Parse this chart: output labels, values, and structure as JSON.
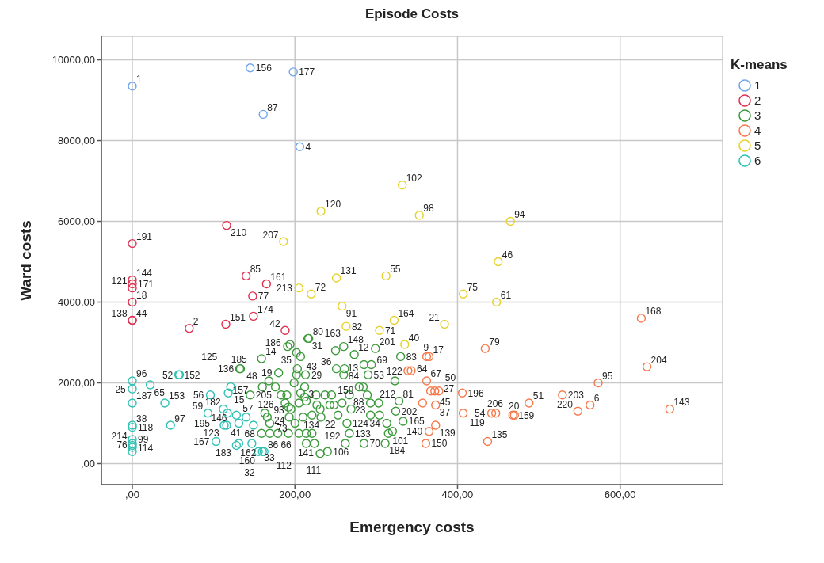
{
  "chart_data": {
    "type": "scatter",
    "title": "Episode Costs",
    "xlabel": "Emergency costs",
    "ylabel": "Ward costs",
    "legend_title": "K-means",
    "legend": "top right",
    "grid": true,
    "marker": "circle",
    "xlim": [
      -38,
      726
    ],
    "xticks": [
      {
        "value": 0,
        "label": ",00"
      },
      {
        "value": 200,
        "label": "200,00"
      },
      {
        "value": 400,
        "label": "400,00"
      },
      {
        "value": 600,
        "label": "600,00"
      }
    ],
    "ylim": [
      -520,
      10580
    ],
    "yticks": [
      {
        "value": 0,
        "label": ",00"
      },
      {
        "value": 2000,
        "label": "2000,00"
      },
      {
        "value": 4000,
        "label": "4000,00"
      },
      {
        "value": 6000,
        "label": "6000,00"
      },
      {
        "value": 8000,
        "label": "8000,00"
      },
      {
        "value": 10000,
        "label": "10000,00"
      }
    ],
    "series": [
      {
        "name": "1",
        "color": "#6fa5ec",
        "x": [
          0,
          145,
          198,
          161,
          206
        ],
        "values": [
          9350,
          9800,
          9700,
          8650,
          7850
        ]
      },
      {
        "name": "2",
        "color": "#e0304f",
        "x": [
          0,
          116,
          0,
          0,
          0,
          0,
          0,
          0,
          70,
          115,
          140,
          165,
          148,
          149,
          188
        ],
        "values": [
          5450,
          5900,
          4550,
          4450,
          4350,
          4000,
          3550,
          3550,
          3350,
          3450,
          4650,
          4450,
          4150,
          3650,
          3300
        ]
      },
      {
        "name": "3",
        "color": "#3c9a3c",
        "x": [
          194,
          191,
          217,
          216,
          260,
          273,
          202,
          207,
          180,
          203,
          202,
          213,
          159,
          133,
          132,
          251,
          261,
          260,
          285,
          294,
          290,
          160,
          168,
          176,
          199,
          212,
          207,
          226,
          237,
          245,
          267,
          279,
          284,
          289,
          145,
          183,
          190,
          188,
          192,
          195,
          205,
          214,
          212,
          227,
          231,
          248,
          243,
          258,
          269,
          293,
          303,
          163,
          166,
          169,
          193,
          200,
          210,
          221,
          232,
          253,
          264,
          293,
          304,
          313,
          179,
          192,
          205,
          214,
          221,
          169,
          159,
          214,
          224,
          267,
          285,
          231,
          240,
          262,
          315,
          323,
          328,
          324,
          333,
          320,
          311,
          299,
          330,
          250
        ],
        "values": [
          2950,
          2900,
          3100,
          3100,
          2900,
          2700,
          2750,
          2650,
          2250,
          2350,
          2200,
          2200,
          2600,
          2350,
          2350,
          2350,
          2350,
          2200,
          2450,
          2450,
          2200,
          1900,
          2050,
          1900,
          2000,
          1900,
          1750,
          1700,
          1700,
          1700,
          1700,
          1900,
          1900,
          1700,
          1700,
          1700,
          1700,
          1500,
          1400,
          1350,
          1500,
          1550,
          1650,
          1450,
          1350,
          1450,
          1450,
          1500,
          1350,
          1500,
          1500,
          1250,
          1150,
          1000,
          1150,
          1000,
          1150,
          1200,
          1150,
          1200,
          1000,
          1200,
          1200,
          1000,
          750,
          750,
          750,
          750,
          750,
          750,
          750,
          500,
          500,
          750,
          500,
          250,
          300,
          500,
          750,
          2050,
          1550,
          1300,
          1050,
          800,
          500,
          2850,
          2650,
          2800
        ]
      },
      {
        "name": "4",
        "color": "#f5794a",
        "x": [
          626,
          633,
          573,
          529,
          563,
          548,
          661,
          488,
          468,
          470,
          447,
          442,
          437,
          434,
          406,
          407,
          365,
          362,
          339,
          343,
          362,
          367,
          372,
          377,
          373,
          357,
          373,
          365,
          361
        ],
        "values": [
          3600,
          2400,
          2000,
          1700,
          1450,
          1300,
          1350,
          1500,
          1200,
          1200,
          1250,
          1250,
          550,
          2850,
          1750,
          1250,
          2650,
          2650,
          2300,
          2300,
          2050,
          1800,
          1800,
          1800,
          1450,
          1500,
          950,
          800,
          500
        ]
      },
      {
        "name": "5",
        "color": "#e6d22a",
        "x": [
          186,
          232,
          332,
          353,
          465,
          450,
          312,
          407,
          448,
          251,
          220,
          205,
          258,
          263,
          304,
          322,
          384,
          335
        ],
        "values": [
          5500,
          6250,
          6900,
          6150,
          6000,
          5000,
          4650,
          4200,
          4000,
          4600,
          4200,
          4350,
          3900,
          3400,
          3300,
          3550,
          3450,
          2950
        ]
      },
      {
        "name": "6",
        "color": "#2fc2b4",
        "x": [
          0,
          0,
          0,
          0,
          0,
          0,
          0,
          0,
          0,
          0,
          57,
          58,
          22,
          40,
          47,
          96,
          93,
          121,
          112,
          117,
          113,
          116,
          103,
          118,
          128,
          131,
          140,
          149,
          131,
          128,
          147,
          155,
          160,
          162
        ],
        "values": [
          2050,
          1850,
          1500,
          950,
          900,
          600,
          500,
          400,
          300,
          450,
          2200,
          2200,
          1950,
          1500,
          950,
          1700,
          1250,
          1900,
          1350,
          1250,
          950,
          950,
          550,
          1750,
          1200,
          1000,
          1150,
          950,
          500,
          450,
          500,
          300,
          300,
          300
        ]
      }
    ],
    "annotations": [
      {
        "text": "1",
        "x": 0,
        "y": 9350
      },
      {
        "text": "156",
        "x": 145,
        "y": 9800
      },
      {
        "text": "177",
        "x": 198,
        "y": 9700
      },
      {
        "text": "87",
        "x": 161,
        "y": 8650
      },
      {
        "text": "4",
        "x": 206,
        "y": 7850
      },
      {
        "text": "191",
        "x": 0,
        "y": 5450
      },
      {
        "text": "210",
        "x": 116,
        "y": 5900
      },
      {
        "text": "144",
        "x": 0,
        "y": 4550
      },
      {
        "text": "171",
        "x": 0,
        "y": 4450
      },
      {
        "text": "121",
        "x": 0,
        "y": 4350
      },
      {
        "text": "18",
        "x": 0,
        "y": 4000
      },
      {
        "text": "44",
        "x": 0,
        "y": 3550
      },
      {
        "text": "138",
        "x": 0,
        "y": 3550
      },
      {
        "text": "2",
        "x": 70,
        "y": 3350
      },
      {
        "text": "151",
        "x": 115,
        "y": 3450
      },
      {
        "text": "85",
        "x": 140,
        "y": 4650
      },
      {
        "text": "161",
        "x": 165,
        "y": 4450
      },
      {
        "text": "77",
        "x": 148,
        "y": 4150
      },
      {
        "text": "174",
        "x": 149,
        "y": 3650
      },
      {
        "text": "42",
        "x": 188,
        "y": 3300
      },
      {
        "text": "186",
        "x": 194,
        "y": 2950
      },
      {
        "text": "80",
        "x": 217,
        "y": 3100
      },
      {
        "text": "31",
        "x": 216,
        "y": 3100
      },
      {
        "text": "148",
        "x": 260,
        "y": 2900
      },
      {
        "text": "12",
        "x": 273,
        "y": 2700
      },
      {
        "text": "35",
        "x": 202,
        "y": 2750
      },
      {
        "text": "19",
        "x": 180,
        "y": 2250
      },
      {
        "text": "43",
        "x": 203,
        "y": 2350
      },
      {
        "text": "14",
        "x": 159,
        "y": 2600
      },
      {
        "text": "136",
        "x": 133,
        "y": 2350
      },
      {
        "text": "185",
        "x": 132,
        "y": 2350
      },
      {
        "text": "36",
        "x": 251,
        "y": 2350
      },
      {
        "text": "84",
        "x": 261,
        "y": 2350
      },
      {
        "text": "13",
        "x": 260,
        "y": 2200
      },
      {
        "text": "69",
        "x": 285,
        "y": 2450
      },
      {
        "text": "53",
        "x": 290,
        "y": 2200
      },
      {
        "text": "48",
        "x": 168,
        "y": 2050
      },
      {
        "text": "29",
        "x": 199,
        "y": 2000
      },
      {
        "text": "3",
        "x": 212,
        "y": 1900
      },
      {
        "text": "158",
        "x": 237,
        "y": 1700
      },
      {
        "text": "88",
        "x": 267,
        "y": 1700
      },
      {
        "text": "205",
        "x": 145,
        "y": 1700
      },
      {
        "text": "126",
        "x": 183,
        "y": 1700
      },
      {
        "text": "24",
        "x": 188,
        "y": 1500
      },
      {
        "text": "23",
        "x": 293,
        "y": 1500
      },
      {
        "text": "57",
        "x": 163,
        "y": 1250
      },
      {
        "text": "93",
        "x": 193,
        "y": 1150
      },
      {
        "text": "66",
        "x": 200,
        "y": 1000
      },
      {
        "text": "134",
        "x": 221,
        "y": 1200
      },
      {
        "text": "22",
        "x": 232,
        "y": 1150
      },
      {
        "text": "124",
        "x": 264,
        "y": 1000
      },
      {
        "text": "212",
        "x": 293,
        "y": 1200
      },
      {
        "text": "34",
        "x": 313,
        "y": 1000
      },
      {
        "text": "86",
        "x": 192,
        "y": 750
      },
      {
        "text": "73",
        "x": 205,
        "y": 750
      },
      {
        "text": "68",
        "x": 159,
        "y": 750
      },
      {
        "text": "141",
        "x": 214,
        "y": 500
      },
      {
        "text": "133",
        "x": 267,
        "y": 750
      },
      {
        "text": "70",
        "x": 285,
        "y": 500
      },
      {
        "text": "111",
        "x": 231,
        "y": 250
      },
      {
        "text": "106",
        "x": 240,
        "y": 300
      },
      {
        "text": "192",
        "x": 262,
        "y": 500
      },
      {
        "text": "101",
        "x": 315,
        "y": 750
      },
      {
        "text": "122",
        "x": 323,
        "y": 2050
      },
      {
        "text": "81",
        "x": 328,
        "y": 1550
      },
      {
        "text": "202",
        "x": 324,
        "y": 1300
      },
      {
        "text": "165",
        "x": 333,
        "y": 1050
      },
      {
        "text": "184",
        "x": 311,
        "y": 500
      },
      {
        "text": "201",
        "x": 299,
        "y": 2850
      },
      {
        "text": "83",
        "x": 330,
        "y": 2650
      },
      {
        "text": "163",
        "x": 250,
        "y": 2800
      },
      {
        "text": "168",
        "x": 626,
        "y": 3600
      },
      {
        "text": "204",
        "x": 633,
        "y": 2400
      },
      {
        "text": "95",
        "x": 573,
        "y": 2000
      },
      {
        "text": "203",
        "x": 529,
        "y": 1700
      },
      {
        "text": "6",
        "x": 563,
        "y": 1450
      },
      {
        "text": "220",
        "x": 548,
        "y": 1300
      },
      {
        "text": "143",
        "x": 661,
        "y": 1350
      },
      {
        "text": "51",
        "x": 488,
        "y": 1500
      },
      {
        "text": "159",
        "x": 468,
        "y": 1200
      },
      {
        "text": "20",
        "x": 470,
        "y": 1200
      },
      {
        "text": "206",
        "x": 447,
        "y": 1250
      },
      {
        "text": "54",
        "x": 442,
        "y": 1250
      },
      {
        "text": "135",
        "x": 437,
        "y": 550
      },
      {
        "text": "79",
        "x": 434,
        "y": 2850
      },
      {
        "text": "196",
        "x": 406,
        "y": 1750
      },
      {
        "text": "119",
        "x": 407,
        "y": 1250
      },
      {
        "text": "17",
        "x": 365,
        "y": 2650
      },
      {
        "text": "9",
        "x": 362,
        "y": 2650
      },
      {
        "text": "64",
        "x": 339,
        "y": 2300
      },
      {
        "text": "67",
        "x": 362,
        "y": 2050
      },
      {
        "text": "45",
        "x": 367,
        "y": 1800
      },
      {
        "text": "27",
        "x": 372,
        "y": 1800
      },
      {
        "text": "50",
        "x": 377,
        "y": 1800
      },
      {
        "text": "37",
        "x": 373,
        "y": 1450
      },
      {
        "text": "139",
        "x": 373,
        "y": 950
      },
      {
        "text": "140",
        "x": 365,
        "y": 800
      },
      {
        "text": "150",
        "x": 361,
        "y": 500
      },
      {
        "text": "207",
        "x": 186,
        "y": 5500
      },
      {
        "text": "120",
        "x": 232,
        "y": 6250
      },
      {
        "text": "102",
        "x": 332,
        "y": 6900
      },
      {
        "text": "98",
        "x": 353,
        "y": 6150
      },
      {
        "text": "94",
        "x": 465,
        "y": 6000
      },
      {
        "text": "46",
        "x": 450,
        "y": 5000
      },
      {
        "text": "55",
        "x": 312,
        "y": 4650
      },
      {
        "text": "75",
        "x": 407,
        "y": 4200
      },
      {
        "text": "61",
        "x": 448,
        "y": 4000
      },
      {
        "text": "131",
        "x": 251,
        "y": 4600
      },
      {
        "text": "72",
        "x": 220,
        "y": 4200
      },
      {
        "text": "213",
        "x": 205,
        "y": 4350
      },
      {
        "text": "91",
        "x": 258,
        "y": 3900
      },
      {
        "text": "82",
        "x": 263,
        "y": 3400
      },
      {
        "text": "71",
        "x": 304,
        "y": 3300
      },
      {
        "text": "164",
        "x": 322,
        "y": 3550
      },
      {
        "text": "21",
        "x": 384,
        "y": 3450
      },
      {
        "text": "40",
        "x": 335,
        "y": 2950
      },
      {
        "text": "96",
        "x": 0,
        "y": 2050
      },
      {
        "text": "25",
        "x": 0,
        "y": 1850
      },
      {
        "text": "187",
        "x": 0,
        "y": 1500
      },
      {
        "text": "38",
        "x": 0,
        "y": 950
      },
      {
        "text": "118",
        "x": 0,
        "y": 900
      },
      {
        "text": "99",
        "x": 0,
        "y": 600
      },
      {
        "text": "214",
        "x": 0,
        "y": 500
      },
      {
        "text": "114",
        "x": 0,
        "y": 400
      },
      {
        "text": "76",
        "x": 0,
        "y": 300
      },
      {
        "text": "152",
        "x": 57,
        "y": 2200
      },
      {
        "text": "52",
        "x": 58,
        "y": 2200
      },
      {
        "text": "65",
        "x": 22,
        "y": 1950
      },
      {
        "text": "153",
        "x": 40,
        "y": 1500
      },
      {
        "text": "97",
        "x": 47,
        "y": 950
      },
      {
        "text": "56",
        "x": 96,
        "y": 1700
      },
      {
        "text": "59",
        "x": 93,
        "y": 1250
      },
      {
        "text": "125",
        "x": 121,
        "y": 1900
      },
      {
        "text": "195",
        "x": 112,
        "y": 1350
      },
      {
        "text": "15",
        "x": 117,
        "y": 1250
      },
      {
        "text": "123",
        "x": 113,
        "y": 950
      },
      {
        "text": "41",
        "x": 116,
        "y": 950
      },
      {
        "text": "167",
        "x": 103,
        "y": 550
      },
      {
        "text": "182",
        "x": 118,
        "y": 1750
      },
      {
        "text": "146",
        "x": 131,
        "y": 1000
      },
      {
        "text": "157",
        "x": 140,
        "y": 1150
      },
      {
        "text": "183",
        "x": 131,
        "y": 500
      },
      {
        "text": "162",
        "x": 128,
        "y": 450
      },
      {
        "text": "33",
        "x": 147,
        "y": 500
      },
      {
        "text": "32",
        "x": 155,
        "y": 300
      },
      {
        "text": "160",
        "x": 160,
        "y": 300
      },
      {
        "text": "112",
        "x": 162,
        "y": 300
      }
    ]
  }
}
